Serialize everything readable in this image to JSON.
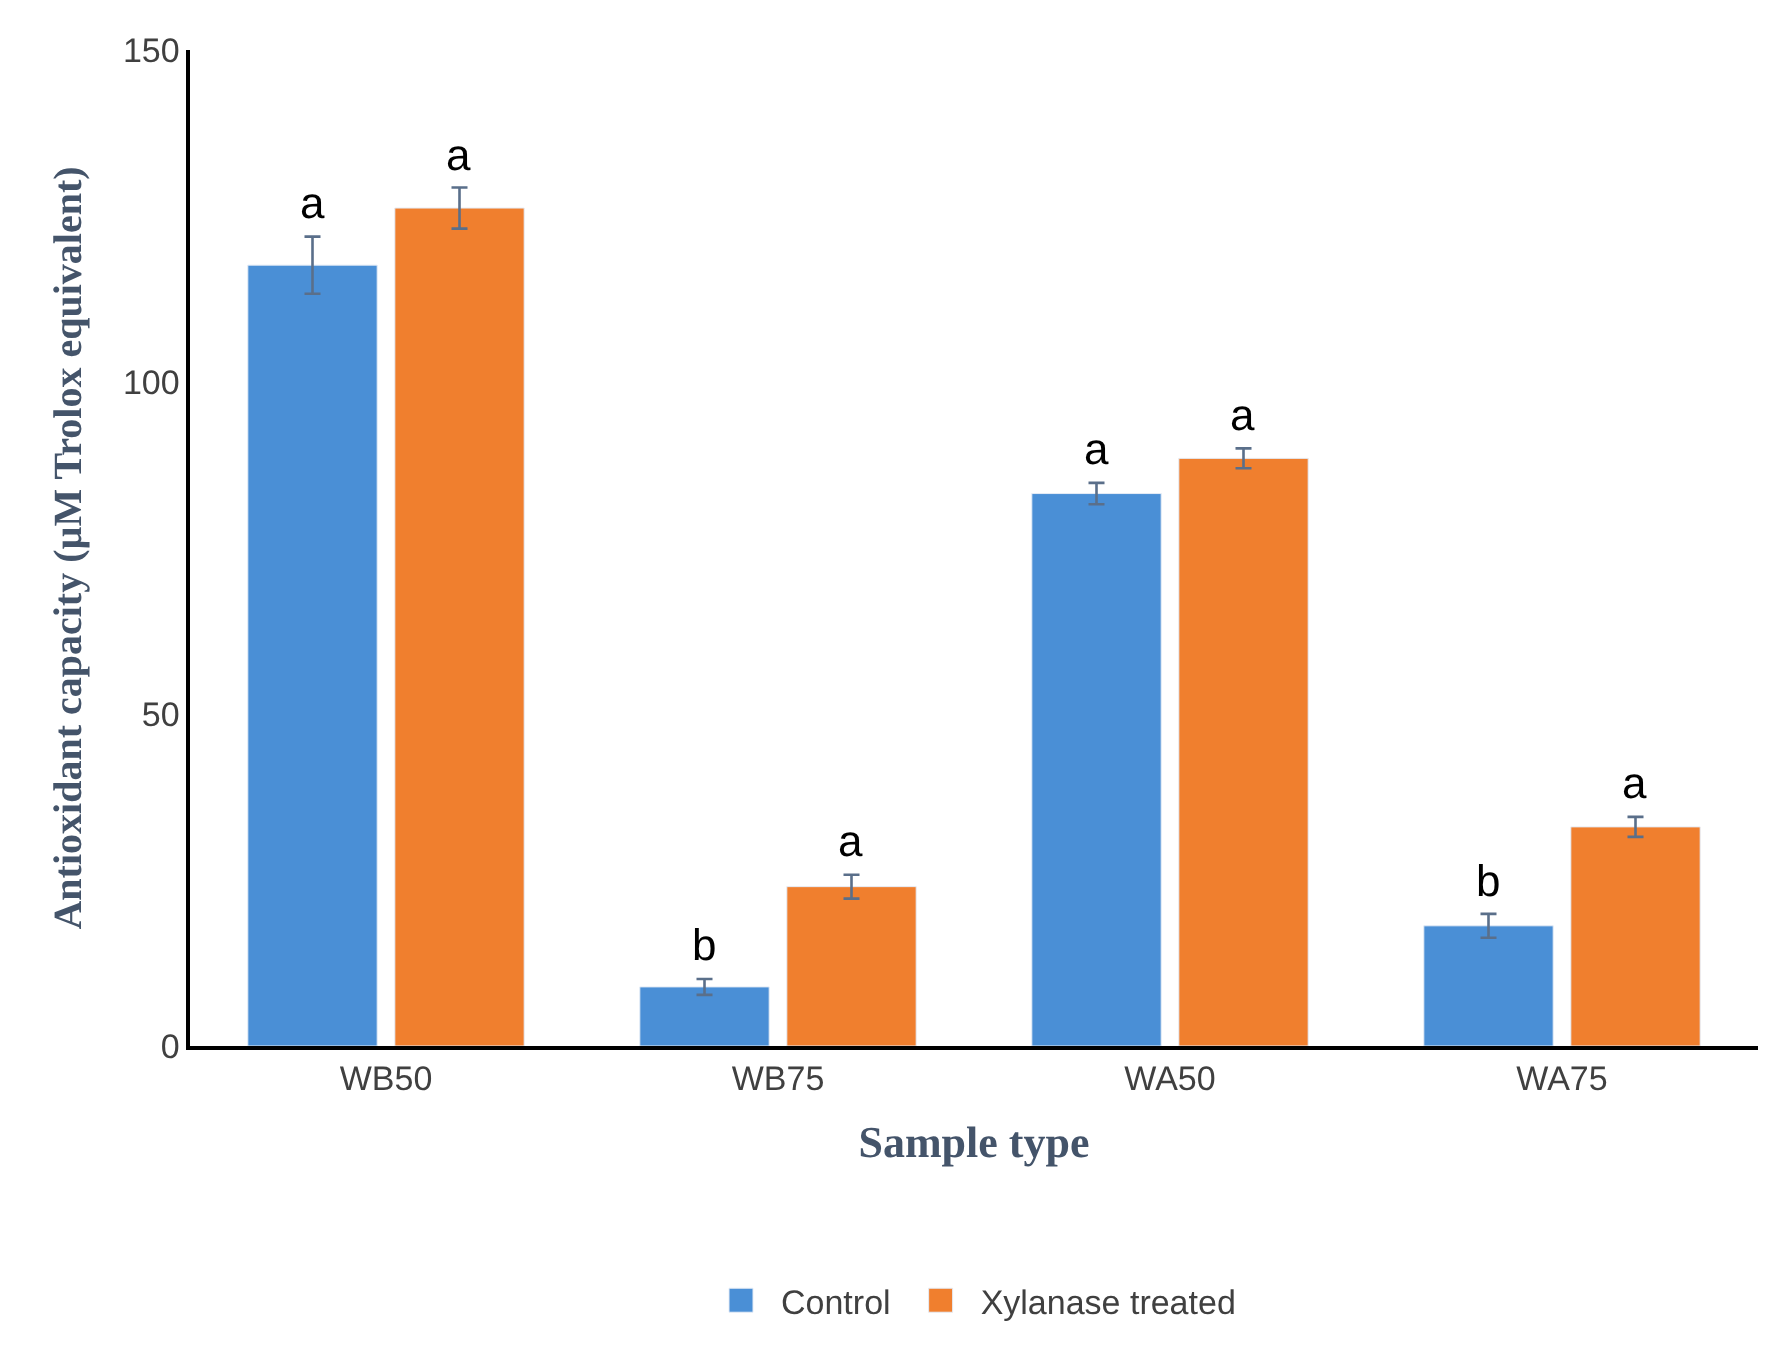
{
  "chart_data": {
    "type": "bar",
    "xlabel": "Sample type",
    "ylabel": "Antioxidant capacity (µM Trolox equivalent)",
    "categories": [
      "WB50",
      "WB75",
      "WA50",
      "WA75"
    ],
    "series": [
      {
        "name": "Control",
        "color": "#4a8fd6",
        "values": [
          117.6,
          8.9,
          83.2,
          18.1
        ],
        "errors": [
          4.3,
          1.2,
          1.6,
          1.8
        ],
        "value_labels": [
          "a",
          "b",
          "a",
          "b"
        ]
      },
      {
        "name": "Xylanase treated",
        "color": "#f07f2e",
        "values": [
          126.2,
          24.0,
          88.5,
          33.0
        ],
        "errors": [
          3.1,
          1.8,
          1.5,
          1.5
        ],
        "value_labels": [
          "a",
          "a",
          "a",
          "a"
        ]
      }
    ],
    "ylim": [
      0,
      150
    ],
    "yticks": [
      0,
      50,
      100,
      150
    ],
    "legend": "bottom"
  }
}
